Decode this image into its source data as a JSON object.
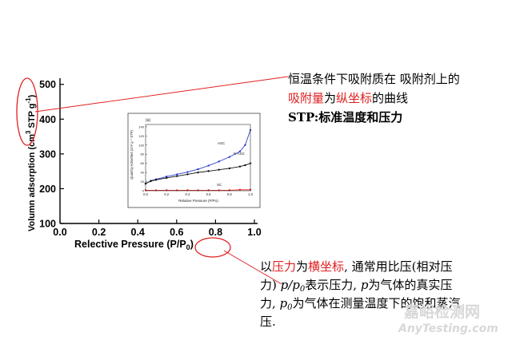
{
  "main_plot": {
    "xlabel_parts": [
      "Relective Pressure (P/P",
      "0",
      ")"
    ],
    "ylabel_parts": [
      "Volumn adsorption (cm",
      "3",
      " STP g",
      "-1",
      ")"
    ],
    "x_ticks": [
      "0.0",
      "0.2",
      "0.4",
      "0.6",
      "0.8",
      "1.0"
    ],
    "y_ticks": [
      "100",
      "200",
      "300",
      "400",
      "500"
    ],
    "xlim": [
      0.0,
      1.0
    ],
    "ylim": [
      100,
      520
    ]
  },
  "inset": {
    "panel_label": "(a)",
    "xlabel": "Relative Pressure (P/Po)",
    "ylabel": "Quantity Adsorbed (cm³ g⁻¹ STP)",
    "x_ticks": [
      "0.0",
      "0.2",
      "0.4",
      "0.6",
      "0.8",
      "1.0"
    ],
    "y_ticks": [
      "0",
      "20",
      "40",
      "60",
      "80",
      "100",
      "120",
      "140"
    ],
    "series_labels": [
      "ASC",
      "N-ASC",
      "SC"
    ],
    "colors": {
      "ASC": "#2a3fd0",
      "N-ASC": "#111111",
      "SC": "#e01818"
    }
  },
  "chart_data": {
    "type": "line",
    "title": "",
    "xlabel": "Relative Pressure (P/Po)",
    "ylabel": "Quantity Adsorbed (cm³ g⁻¹ STP)",
    "xlim": [
      0.0,
      1.0
    ],
    "ylim": [
      0,
      145
    ],
    "series": [
      {
        "name": "ASC",
        "x": [
          0.0,
          0.05,
          0.1,
          0.2,
          0.3,
          0.4,
          0.5,
          0.6,
          0.7,
          0.8,
          0.9,
          0.95,
          1.0
        ],
        "y": [
          15,
          22,
          25,
          31,
          36,
          41,
          47,
          55,
          64,
          74,
          86,
          100,
          133
        ]
      },
      {
        "name": "N-ASC",
        "x": [
          0.0,
          0.05,
          0.1,
          0.2,
          0.3,
          0.4,
          0.5,
          0.6,
          0.7,
          0.8,
          0.9,
          0.95,
          1.0
        ],
        "y": [
          16,
          21,
          24,
          28,
          32,
          36,
          40,
          43,
          46,
          49,
          53,
          56,
          60
        ]
      },
      {
        "name": "SC",
        "x": [
          0.0,
          0.1,
          0.2,
          0.3,
          0.4,
          0.5,
          0.6,
          0.7,
          0.8,
          0.9,
          1.0
        ],
        "y": [
          1,
          1,
          1,
          1,
          1,
          1,
          1,
          1,
          1,
          2,
          2
        ]
      }
    ]
  },
  "annotations": {
    "top": {
      "line1": "恒温条件下吸附质在 吸附剂上的",
      "line2_parts": [
        {
          "text": "吸附量",
          "red": true
        },
        {
          "text": "为",
          "red": false
        },
        {
          "text": "纵坐标",
          "red": true
        },
        {
          "text": "的曲线",
          "red": false
        }
      ],
      "line3": "STP:标准温度和压力"
    },
    "bottom": {
      "line1_parts": [
        {
          "text": "以",
          "red": false
        },
        {
          "text": "压力",
          "red": true
        },
        {
          "text": "为",
          "red": false
        },
        {
          "text": "横坐标",
          "red": true
        },
        {
          "text": ", 通常用比压(相对压",
          "red": false
        }
      ],
      "line2_parts": [
        "力) ",
        "p/p",
        "0",
        "表示压力, ",
        "p",
        "为气体的真实压"
      ],
      "line3_parts": [
        "力, ",
        "p",
        "0",
        "为气体在测量温度下的饱和蒸汽"
      ],
      "line4": "压."
    },
    "line_color": "#e02020"
  },
  "watermark": {
    "cn": "嘉峪检测网",
    "en": "AnyTesting.com"
  }
}
